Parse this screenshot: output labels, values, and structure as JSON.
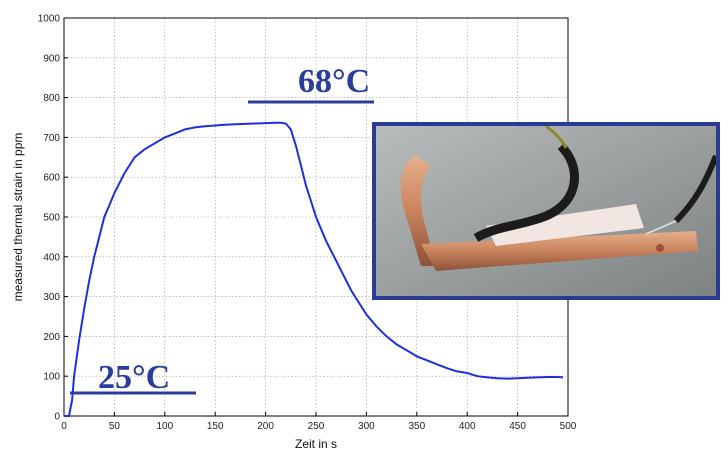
{
  "chart_data": {
    "type": "line",
    "xlabel": "Zeit in s",
    "ylabel": "measured thermal strain in ppm",
    "xlim": [
      0,
      500
    ],
    "ylim": [
      0,
      1000
    ],
    "x_ticks": [
      0,
      50,
      100,
      150,
      200,
      250,
      300,
      350,
      400,
      450,
      500
    ],
    "y_ticks": [
      0,
      100,
      200,
      300,
      400,
      500,
      600,
      700,
      800,
      900,
      1000
    ],
    "grid": true,
    "line_color": "#1f2fe0",
    "series": [
      {
        "x": [
          0,
          5,
          8,
          10,
          15,
          20,
          25,
          30,
          35,
          40,
          45,
          50,
          55,
          60,
          65,
          70,
          75,
          80,
          90,
          100,
          110,
          120,
          130,
          140,
          150,
          160,
          170,
          180,
          190,
          200,
          210,
          215,
          220,
          225,
          230,
          235,
          240,
          245,
          250,
          255,
          260,
          265,
          270,
          275,
          280,
          285,
          290,
          295,
          300,
          310,
          320,
          330,
          340,
          350,
          360,
          370,
          380,
          390,
          400,
          410,
          420,
          430,
          440,
          450,
          460,
          470,
          480,
          490,
          495
        ],
        "y": [
          0,
          0,
          40,
          100,
          190,
          270,
          340,
          400,
          450,
          500,
          530,
          560,
          585,
          610,
          630,
          650,
          660,
          670,
          685,
          700,
          710,
          720,
          725,
          728,
          730,
          732,
          733,
          734,
          735,
          736,
          737,
          737,
          735,
          720,
          680,
          630,
          580,
          540,
          500,
          470,
          440,
          415,
          390,
          365,
          340,
          315,
          295,
          275,
          255,
          225,
          200,
          180,
          165,
          150,
          140,
          130,
          120,
          112,
          108,
          100,
          97,
          95,
          94,
          95,
          96,
          97,
          98,
          98,
          97
        ]
      }
    ],
    "annotations": [
      {
        "text": "68°C",
        "x": 220,
        "y": 790
      },
      {
        "text": "25°C",
        "x": 85,
        "y": 60
      }
    ]
  },
  "photo": {
    "icon": "strain-gauge-photo-icon",
    "border_color": "#2a3a95"
  }
}
